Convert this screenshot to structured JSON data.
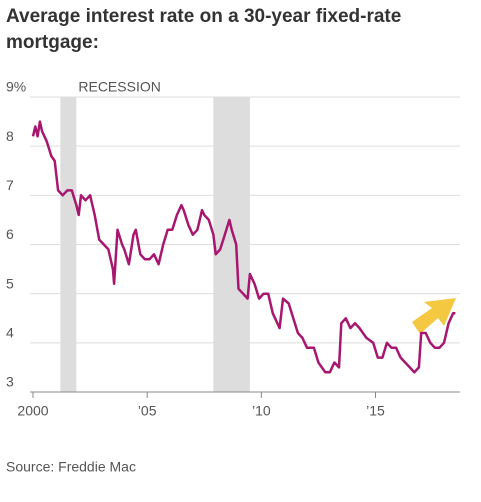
{
  "chart_data": {
    "type": "line",
    "title": "Average interest rate on a 30-year fixed-rate mortgage:",
    "source": "Source: Freddie Mac",
    "span_label": "RECESSION",
    "shaded_spans": [
      [
        2001.2,
        2001.9
      ],
      [
        2007.9,
        2009.5
      ]
    ],
    "span_color": "#dddddd",
    "xlim": [
      2000,
      2018.7
    ],
    "xticks": [
      2000,
      {
        "value": 2005,
        "label": "’05"
      },
      {
        "value": 2010,
        "label": "’10"
      },
      {
        "value": 2015,
        "label": "’15"
      }
    ],
    "ylim": [
      3,
      9
    ],
    "yticks": [
      3,
      4,
      5,
      6,
      7,
      8,
      {
        "value": 9,
        "label": "9%"
      }
    ],
    "grid": true,
    "series": [
      {
        "color": "#a8176f",
        "x": [
          2000.0,
          2000.1,
          2000.2,
          2000.3,
          2000.4,
          2000.6,
          2000.8,
          2000.95,
          2001.1,
          2001.3,
          2001.5,
          2001.7,
          2001.9,
          2002.0,
          2002.1,
          2002.3,
          2002.5,
          2002.7,
          2002.9,
          2003.1,
          2003.3,
          2003.5,
          2003.55,
          2003.7,
          2003.9,
          2004.0,
          2004.2,
          2004.4,
          2004.5,
          2004.7,
          2004.9,
          2005.1,
          2005.3,
          2005.5,
          2005.7,
          2005.9,
          2006.1,
          2006.3,
          2006.5,
          2006.6,
          2006.8,
          2007.0,
          2007.2,
          2007.4,
          2007.5,
          2007.7,
          2007.9,
          2008.0,
          2008.2,
          2008.4,
          2008.6,
          2008.7,
          2008.9,
          2009.0,
          2009.2,
          2009.4,
          2009.5,
          2009.7,
          2009.9,
          2010.1,
          2010.3,
          2010.5,
          2010.8,
          2010.95,
          2011.2,
          2011.4,
          2011.6,
          2011.8,
          2012.0,
          2012.3,
          2012.5,
          2012.8,
          2013.0,
          2013.2,
          2013.4,
          2013.5,
          2013.7,
          2013.9,
          2014.1,
          2014.3,
          2014.6,
          2014.9,
          2015.1,
          2015.3,
          2015.5,
          2015.7,
          2015.9,
          2016.1,
          2016.3,
          2016.5,
          2016.7,
          2016.9,
          2017.0,
          2017.2,
          2017.4,
          2017.6,
          2017.8,
          2018.0,
          2018.2,
          2018.4,
          2018.5
        ],
        "values": [
          8.2,
          8.4,
          8.2,
          8.5,
          8.3,
          8.1,
          7.8,
          7.7,
          7.1,
          7.0,
          7.1,
          7.1,
          6.8,
          6.6,
          7.0,
          6.9,
          7.0,
          6.6,
          6.1,
          6.0,
          5.9,
          5.5,
          5.2,
          6.3,
          6.0,
          5.9,
          5.6,
          6.2,
          6.3,
          5.8,
          5.7,
          5.7,
          5.8,
          5.6,
          6.0,
          6.3,
          6.3,
          6.6,
          6.8,
          6.7,
          6.4,
          6.2,
          6.3,
          6.7,
          6.6,
          6.5,
          6.2,
          5.8,
          5.9,
          6.2,
          6.5,
          6.3,
          6.0,
          5.1,
          5.0,
          4.9,
          5.4,
          5.2,
          4.9,
          5.0,
          5.0,
          4.6,
          4.3,
          4.9,
          4.8,
          4.5,
          4.2,
          4.1,
          3.9,
          3.9,
          3.6,
          3.4,
          3.4,
          3.6,
          3.5,
          4.4,
          4.5,
          4.3,
          4.4,
          4.3,
          4.1,
          4.0,
          3.7,
          3.7,
          4.0,
          3.9,
          3.9,
          3.7,
          3.6,
          3.5,
          3.4,
          3.5,
          4.2,
          4.2,
          4.0,
          3.9,
          3.9,
          4.0,
          4.4,
          4.6,
          4.6
        ]
      }
    ]
  }
}
